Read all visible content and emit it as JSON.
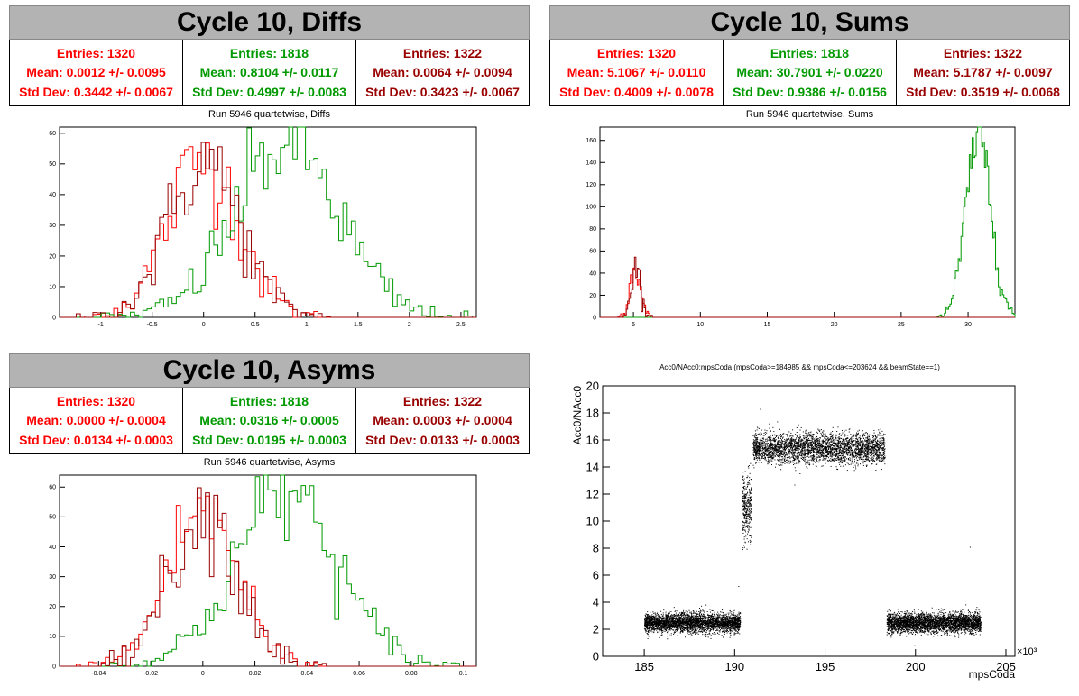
{
  "panels": [
    {
      "title": "Cycle 10, Diffs",
      "subtitle": "Run 5946 quartetwise, Diffs",
      "stats": [
        {
          "entries": "Entries: 1320",
          "mean": "Mean: 0.0012 +/- 0.0095",
          "std": "Std Dev: 0.3442 +/- 0.0067",
          "color": "#ff0000"
        },
        {
          "entries": "Entries: 1818",
          "mean": "Mean: 0.8104 +/- 0.0117",
          "std": "Std Dev: 0.4997 +/- 0.0083",
          "color": "#009900"
        },
        {
          "entries": "Entries: 1322",
          "mean": "Mean: 0.0064 +/- 0.0094",
          "std": "Std Dev: 0.3423 +/- 0.0067",
          "color": "#990000"
        }
      ]
    },
    {
      "title": "Cycle 10, Sums",
      "subtitle": "Run 5946 quartetwise, Sums",
      "stats": [
        {
          "entries": "Entries: 1320",
          "mean": "Mean: 5.1067 +/- 0.0110",
          "std": "Std Dev: 0.4009 +/- 0.0078",
          "color": "#ff0000"
        },
        {
          "entries": "Entries: 1818",
          "mean": "Mean: 30.7901 +/- 0.0220",
          "std": "Std Dev: 0.9386 +/- 0.0156",
          "color": "#009900"
        },
        {
          "entries": "Entries: 1322",
          "mean": "Mean: 5.1787 +/- 0.0097",
          "std": "Std Dev: 0.3519 +/- 0.0068",
          "color": "#990000"
        }
      ]
    },
    {
      "title": "Cycle 10, Asyms",
      "subtitle": "Run 5946 quartetwise, Asyms",
      "stats": [
        {
          "entries": "Entries: 1320",
          "mean": "Mean: 0.0000 +/- 0.0004",
          "std": "Std Dev: 0.0134 +/- 0.0003",
          "color": "#ff0000"
        },
        {
          "entries": "Entries: 1818",
          "mean": "Mean: 0.0316 +/- 0.0005",
          "std": "Std Dev: 0.0195 +/- 0.0003",
          "color": "#009900"
        },
        {
          "entries": "Entries: 1322",
          "mean": "Mean: 0.0003 +/- 0.0004",
          "std": "Std Dev: 0.0133 +/- 0.0003",
          "color": "#990000"
        }
      ]
    }
  ],
  "chart_data": [
    {
      "type": "histogram",
      "xlim": [
        -1.4,
        2.65
      ],
      "ylim": [
        0,
        62
      ],
      "xticks": [
        "-1",
        "-0.5",
        "0",
        "0.5",
        "1",
        "1.5",
        "2",
        "2.5"
      ],
      "xtick_values": [
        -1,
        -0.5,
        0,
        0.5,
        1,
        1.5,
        2,
        2.5
      ],
      "yticks": [
        "0",
        "10",
        "20",
        "30",
        "40",
        "50",
        "60"
      ],
      "ytick_values": [
        0,
        10,
        20,
        30,
        40,
        50,
        60
      ],
      "series": [
        {
          "color": "#ff0000",
          "mean": 0.0012,
          "std": 0.3442,
          "peak": 52
        },
        {
          "color": "#009900",
          "mean": 0.8104,
          "std": 0.4997,
          "peak": 57
        },
        {
          "color": "#990000",
          "mean": 0.0064,
          "std": 0.3423,
          "peak": 51
        }
      ]
    },
    {
      "type": "histogram",
      "xlim": [
        2.5,
        33.5
      ],
      "ylim": [
        0,
        172
      ],
      "xticks": [
        "5",
        "10",
        "15",
        "20",
        "25",
        "30"
      ],
      "xtick_values": [
        5,
        10,
        15,
        20,
        25,
        30
      ],
      "yticks": [
        "0",
        "20",
        "40",
        "60",
        "80",
        "100",
        "120",
        "140",
        "160"
      ],
      "ytick_values": [
        0,
        20,
        40,
        60,
        80,
        100,
        120,
        140,
        160
      ],
      "series": [
        {
          "color": "#ff0000",
          "mean": 5.1067,
          "std": 0.4009,
          "peak": 45
        },
        {
          "color": "#009900",
          "mean": 30.7901,
          "std": 0.9386,
          "peak": 165
        },
        {
          "color": "#990000",
          "mean": 5.1787,
          "std": 0.3519,
          "peak": 47
        }
      ]
    },
    {
      "type": "histogram",
      "xlim": [
        -0.055,
        0.105
      ],
      "ylim": [
        0,
        64
      ],
      "xticks": [
        "-0.04",
        "-0.02",
        "0",
        "0.02",
        "0.04",
        "0.06",
        "0.08",
        "0.1"
      ],
      "xtick_values": [
        -0.04,
        -0.02,
        0,
        0.02,
        0.04,
        0.06,
        0.08,
        0.1
      ],
      "yticks": [
        "0",
        "10",
        "20",
        "30",
        "40",
        "50",
        "60"
      ],
      "ytick_values": [
        0,
        10,
        20,
        30,
        40,
        50,
        60
      ],
      "series": [
        {
          "color": "#ff0000",
          "mean": 0.0,
          "std": 0.0134,
          "peak": 53
        },
        {
          "color": "#009900",
          "mean": 0.0316,
          "std": 0.0195,
          "peak": 58
        },
        {
          "color": "#990000",
          "mean": 0.0003,
          "std": 0.0133,
          "peak": 52
        }
      ]
    },
    {
      "type": "scatter",
      "title": "Acc0/NAcc0:mpsCoda (mpsCoda>=184985 && mpsCoda<=203624 && beamState==1)",
      "xlabel": "mpsCoda",
      "ylabel": "Acc0/NAcc0",
      "x_exponent": "×10³",
      "xlim": [
        182.7,
        205.5
      ],
      "ylim": [
        0,
        20
      ],
      "xticks": [
        "185",
        "190",
        "195",
        "200",
        "205"
      ],
      "xtick_values": [
        185,
        190,
        195,
        200,
        205
      ],
      "yticks": [
        "0",
        "2",
        "4",
        "6",
        "8",
        "10",
        "12",
        "14",
        "16",
        "18",
        "20"
      ],
      "ytick_values": [
        0,
        2,
        4,
        6,
        8,
        10,
        12,
        14,
        16,
        18,
        20
      ],
      "clusters": [
        {
          "x_range": [
            185.0,
            190.3
          ],
          "y_center": 2.5,
          "y_spread": 0.35
        },
        {
          "x_range": [
            190.4,
            190.9
          ],
          "y_center": 11.0,
          "y_spread": 1.2
        },
        {
          "x_range": [
            191.0,
            198.3
          ],
          "y_center": 15.4,
          "y_spread": 0.55
        },
        {
          "x_range": [
            198.4,
            203.6
          ],
          "y_center": 2.5,
          "y_spread": 0.35
        }
      ]
    }
  ]
}
